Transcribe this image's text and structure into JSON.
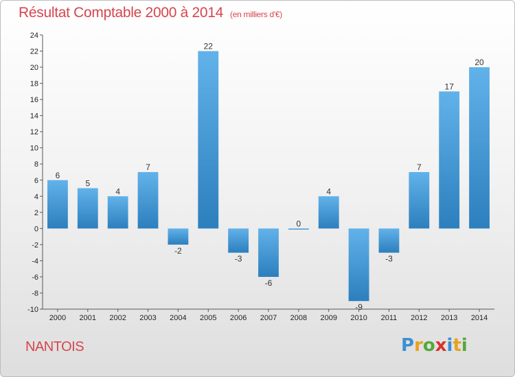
{
  "header": {
    "title": "Résultat Comptable 2000 à 2014",
    "unit": "(en milliers d'€)"
  },
  "commune": "NANTOIS",
  "logo": {
    "letters": [
      "P",
      "r",
      "o",
      "x",
      "i",
      "t",
      "i"
    ],
    "colors": [
      "#3d8fd1",
      "#e8a21c",
      "#55a83b",
      "#d8322e",
      "#3d8fd1",
      "#e8a21c",
      "#55a83b"
    ]
  },
  "colors": {
    "bar_light": "#62b2ea",
    "bar_dark": "#2c7fbd",
    "axis": "#555555",
    "grid": "#bbbbbb",
    "title": "#d6454d"
  },
  "chart_data": {
    "type": "bar",
    "title": "Résultat Comptable 2000 à 2014",
    "subtitle": "(en milliers d'€)",
    "xlabel": "",
    "ylabel": "",
    "categories": [
      "2000",
      "2001",
      "2002",
      "2003",
      "2004",
      "2005",
      "2006",
      "2007",
      "2008",
      "2009",
      "2010",
      "2011",
      "2012",
      "2013",
      "2014"
    ],
    "values": [
      6,
      5,
      4,
      7,
      -2,
      22,
      -3,
      -6,
      0,
      4,
      -9,
      -3,
      7,
      17,
      20
    ],
    "ylim": [
      -10,
      24
    ],
    "yticks": [
      -10,
      -8,
      -6,
      -4,
      -2,
      0,
      2,
      4,
      6,
      8,
      10,
      12,
      14,
      16,
      18,
      20,
      22,
      24
    ],
    "grid": false
  }
}
